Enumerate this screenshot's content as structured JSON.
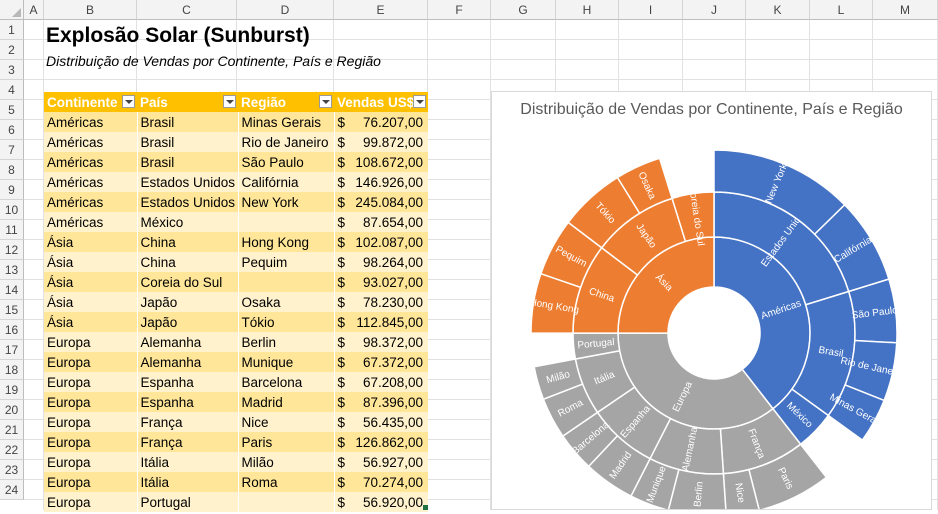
{
  "columns": [
    "A",
    "B",
    "C",
    "D",
    "E",
    "F",
    "G",
    "H",
    "I",
    "J",
    "K",
    "L",
    "M"
  ],
  "rows": [
    "1",
    "2",
    "3",
    "4",
    "5",
    "6",
    "7",
    "8",
    "9",
    "10",
    "11",
    "12",
    "13",
    "14",
    "15",
    "16",
    "17",
    "18",
    "19",
    "20",
    "21",
    "22",
    "23",
    "24"
  ],
  "sheet": {
    "title": "Explosão Solar (Sunburst)",
    "subtitle": "Distribuição de Vendas por Continente, País e Região"
  },
  "table": {
    "headers": [
      "Continente",
      "País",
      "Região",
      "Vendas US$"
    ],
    "currency": "$",
    "rows": [
      [
        "Américas",
        "Brasil",
        "Minas Gerais",
        "76.207,00"
      ],
      [
        "Américas",
        "Brasil",
        "Rio de Janeiro",
        "99.872,00"
      ],
      [
        "Américas",
        "Brasil",
        "São Paulo",
        "108.672,00"
      ],
      [
        "Américas",
        "Estados Unidos",
        "Califórnia",
        "146.926,00"
      ],
      [
        "Américas",
        "Estados Unidos",
        "New York",
        "245.084,00"
      ],
      [
        "Américas",
        "México",
        "",
        "87.654,00"
      ],
      [
        "Ásia",
        "China",
        "Hong Kong",
        "102.087,00"
      ],
      [
        "Ásia",
        "China",
        "Pequim",
        "98.264,00"
      ],
      [
        "Ásia",
        "Coreia do Sul",
        "",
        "93.027,00"
      ],
      [
        "Ásia",
        "Japão",
        "Osaka",
        "78.230,00"
      ],
      [
        "Ásia",
        "Japão",
        "Tókio",
        "112.845,00"
      ],
      [
        "Europa",
        "Alemanha",
        "Berlin",
        "98.372,00"
      ],
      [
        "Europa",
        "Alemanha",
        "Munique",
        "67.372,00"
      ],
      [
        "Europa",
        "Espanha",
        "Barcelona",
        "67.208,00"
      ],
      [
        "Europa",
        "Espanha",
        "Madrid",
        "87.396,00"
      ],
      [
        "Europa",
        "França",
        "Nice",
        "56.435,00"
      ],
      [
        "Europa",
        "França",
        "Paris",
        "126.862,00"
      ],
      [
        "Europa",
        "Itália",
        "Milão",
        "56.927,00"
      ],
      [
        "Europa",
        "Itália",
        "Roma",
        "70.274,00"
      ],
      [
        "Europa",
        "Portugal",
        "",
        "56.920,00"
      ]
    ]
  },
  "chart_data": {
    "type": "sunburst",
    "title": "Distribuição de Vendas por Continente, País e Região",
    "colors": {
      "Américas": "#4472c4",
      "Ásia": "#ed7d31",
      "Europa": "#a5a5a5"
    },
    "tree": [
      {
        "name": "Américas",
        "children": [
          {
            "name": "Estados Unidos",
            "children": [
              {
                "name": "New York",
                "value": 245084
              },
              {
                "name": "Califórnia",
                "value": 146926
              }
            ]
          },
          {
            "name": "Brasil",
            "children": [
              {
                "name": "São Paulo",
                "value": 108672
              },
              {
                "name": "Rio de Janeiro",
                "value": 99872
              },
              {
                "name": "Minas Gerais",
                "value": 76207
              }
            ]
          },
          {
            "name": "México",
            "value": 87654
          }
        ]
      },
      {
        "name": "Europa",
        "children": [
          {
            "name": "França",
            "children": [
              {
                "name": "Paris",
                "value": 126862
              },
              {
                "name": "Nice",
                "value": 56435
              }
            ]
          },
          {
            "name": "Alemanha",
            "children": [
              {
                "name": "Berlin",
                "value": 98372
              },
              {
                "name": "Munique",
                "value": 67372
              }
            ]
          },
          {
            "name": "Espanha",
            "children": [
              {
                "name": "Madrid",
                "value": 87396
              },
              {
                "name": "Barcelona",
                "value": 67208
              }
            ]
          },
          {
            "name": "Itália",
            "children": [
              {
                "name": "Roma",
                "value": 70274
              },
              {
                "name": "Milão",
                "value": 56927
              }
            ]
          },
          {
            "name": "Portugal",
            "value": 56920
          }
        ]
      },
      {
        "name": "Ásia",
        "children": [
          {
            "name": "China",
            "children": [
              {
                "name": "Hong Kong",
                "value": 102087
              },
              {
                "name": "Pequim",
                "value": 98264
              }
            ]
          },
          {
            "name": "Japão",
            "children": [
              {
                "name": "Tókio",
                "value": 112845
              },
              {
                "name": "Osaka",
                "value": 78230
              }
            ]
          },
          {
            "name": "Coreia do Sul",
            "value": 93027
          }
        ]
      }
    ]
  }
}
